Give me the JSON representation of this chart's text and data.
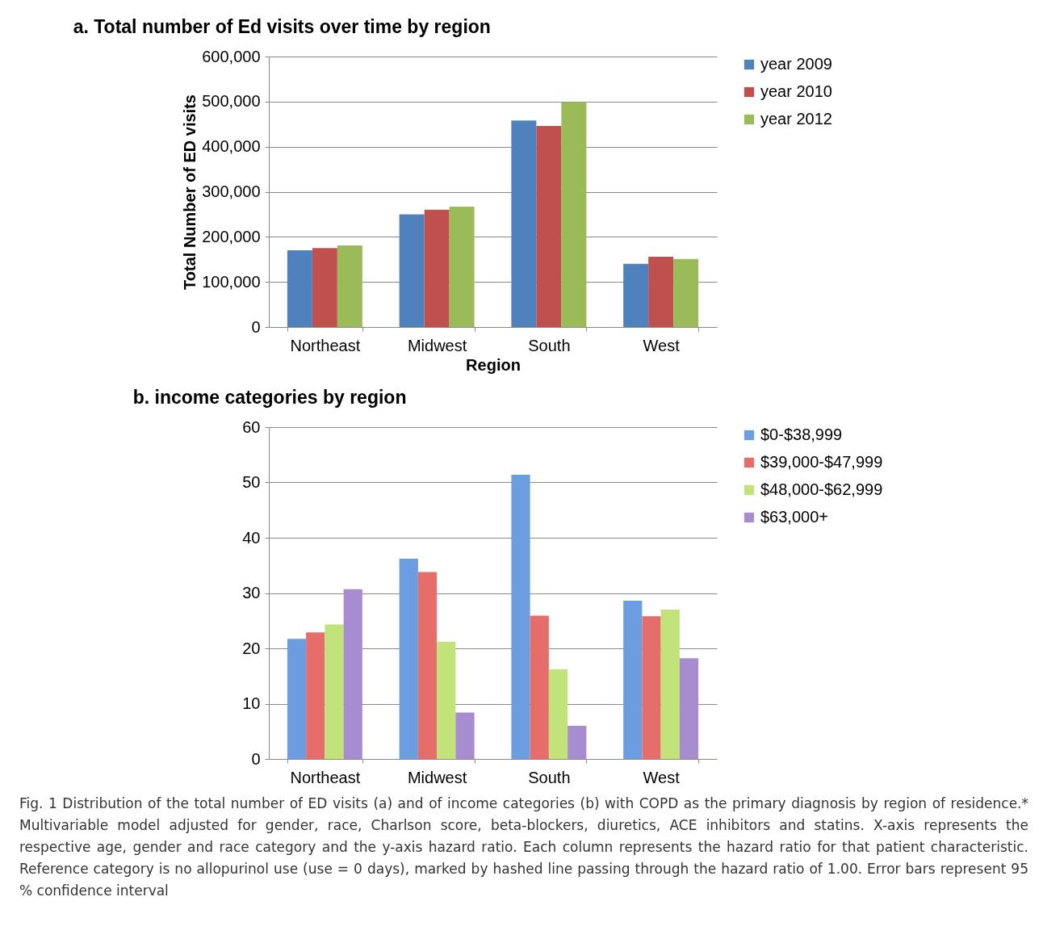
{
  "chart_data": [
    {
      "type": "bar",
      "title": "a. Total number of Ed visits over time by region",
      "xlabel": "Region",
      "ylabel": "Total Number of ED visits",
      "categories": [
        "Northeast",
        "Midwest",
        "South",
        "West"
      ],
      "series": [
        {
          "name": "year 2009",
          "color": "#4f81bd",
          "values": [
            170000,
            250000,
            458000,
            140000
          ]
        },
        {
          "name": "year 2010",
          "color": "#c0504d",
          "values": [
            175000,
            260000,
            446000,
            156000
          ]
        },
        {
          "name": "year 2012",
          "color": "#9bbb59",
          "values": [
            181000,
            267000,
            499000,
            151000
          ]
        }
      ],
      "ylim": [
        0,
        600000
      ],
      "yticks": [
        0,
        {
          "value": 100000,
          "label": "100,000"
        },
        {
          "value": 200000,
          "label": "200,000"
        },
        {
          "value": 300000,
          "label": "300,000"
        },
        {
          "value": 400000,
          "label": "400,000"
        },
        {
          "value": 500000,
          "label": "500,000"
        },
        {
          "value": 600000,
          "label": "600,000"
        }
      ],
      "grid": "y",
      "legend": "right"
    },
    {
      "type": "bar",
      "title": "b. income categories by region",
      "categories": [
        "Northeast",
        "Midwest",
        "South",
        "West"
      ],
      "series": [
        {
          "name": "$0-$38,999",
          "color": "#6c9de0",
          "values": [
            21.7,
            36.2,
            51.4,
            28.6
          ]
        },
        {
          "name": "$39,000-$47,999",
          "color": "#e56e6a",
          "values": [
            22.9,
            33.8,
            25.9,
            25.8
          ]
        },
        {
          "name": "$48,000-$62,999",
          "color": "#c2e37a",
          "values": [
            24.3,
            21.2,
            16.2,
            27.0
          ]
        },
        {
          "name": "$63,000+",
          "color": "#a88cd0",
          "values": [
            30.7,
            8.4,
            6.0,
            18.2
          ]
        }
      ],
      "ylim": [
        0,
        60
      ],
      "yticks": [
        0,
        10,
        20,
        30,
        40,
        50,
        60
      ],
      "grid": "y",
      "legend": "right",
      "annotations": [
        "Fig. 1 Distribution of the total number of ED visits (a) and of income categories (b) with COPD as the primary diagnosis by region of residence.* Multivariable model adjusted for gender, race, Charlson score, beta-blockers, diuretics, ACE inhibitors and statins. X-axis represents the respective age, gender and race category and the y-axis hazard ratio. Each column represents the hazard ratio for that patient characteristic. Reference category is no allopurinol use (use = 0 days), marked by hashed line passing through the hazard ratio of 1.00. Error bars represent 95 % confidence interval"
      ]
    }
  ]
}
